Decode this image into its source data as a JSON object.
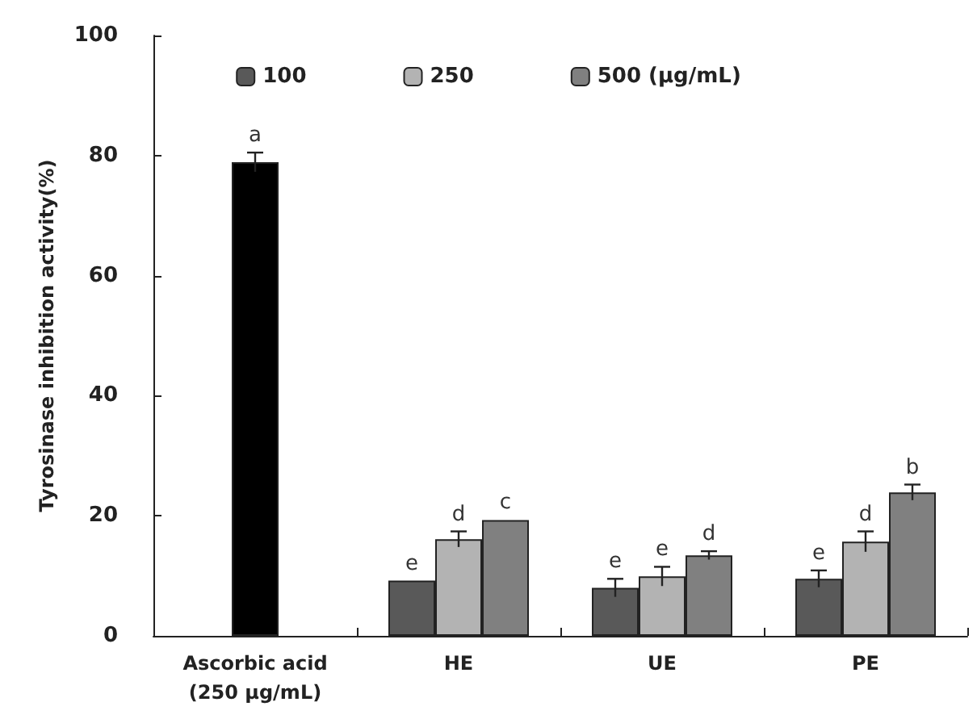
{
  "chart_data": {
    "type": "bar",
    "ylabel": "Tyrosinase inhibition activity(%)",
    "categories": [
      "Ascorbic acid\n(250 µg/mL)",
      "HE",
      "UE",
      "PE"
    ],
    "series": [
      {
        "color": "#000000",
        "values": [
          78.9,
          null,
          null,
          null
        ],
        "errors": [
          1.6,
          null,
          null,
          null
        ],
        "value_labels": [
          "a",
          null,
          null,
          null
        ]
      },
      {
        "name": "100",
        "color": "#595959",
        "values": [
          null,
          9.2,
          8.0,
          9.5
        ],
        "errors": [
          null,
          null,
          1.5,
          1.4
        ],
        "value_labels": [
          null,
          "e",
          "e",
          "e"
        ]
      },
      {
        "name": "250",
        "color": "#b3b3b3",
        "values": [
          null,
          16.1,
          9.9,
          15.7
        ],
        "errors": [
          null,
          1.3,
          1.6,
          1.7
        ],
        "value_labels": [
          null,
          "d",
          "e",
          "d"
        ]
      },
      {
        "name": "500 (µg/mL)",
        "color": "#808080",
        "values": [
          null,
          19.3,
          13.4,
          23.9
        ],
        "errors": [
          null,
          null,
          0.7,
          1.3
        ],
        "value_labels": [
          null,
          "c",
          "d",
          "b"
        ]
      }
    ],
    "ylim": [
      0,
      100
    ],
    "yticks": [
      0,
      20,
      40,
      60,
      80,
      100
    ],
    "grid": false,
    "legend": "top"
  }
}
